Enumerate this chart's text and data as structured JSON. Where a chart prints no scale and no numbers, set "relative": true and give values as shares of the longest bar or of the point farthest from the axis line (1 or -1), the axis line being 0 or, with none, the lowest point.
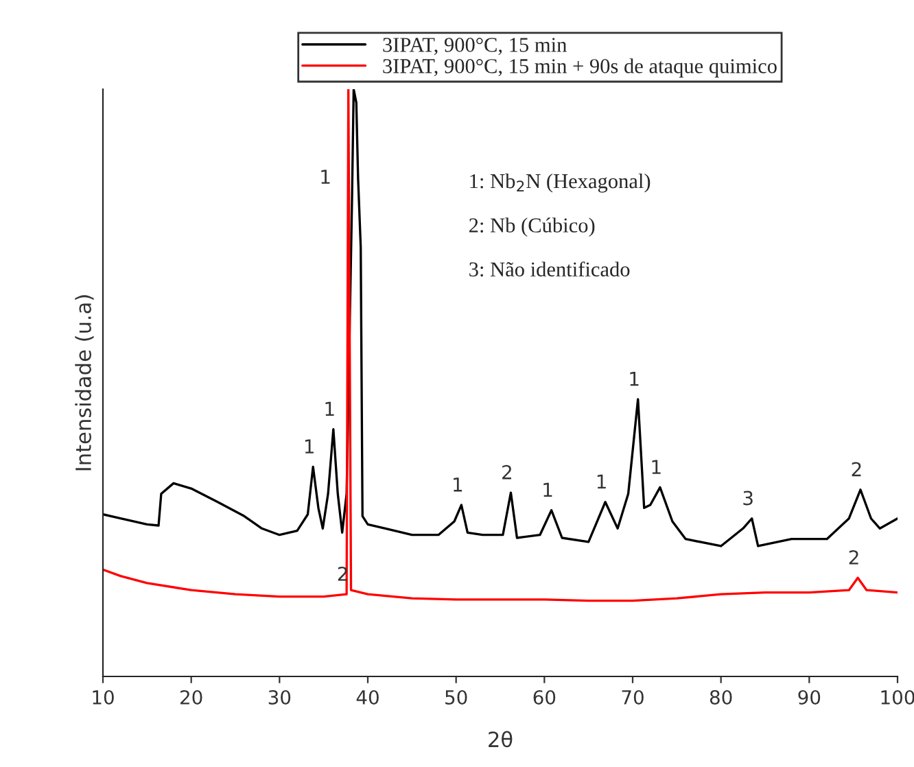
{
  "chart_data": {
    "type": "line",
    "xlabel": "2θ",
    "ylabel": "Intensidade (u.a)",
    "relative": true,
    "xlim": [
      10,
      100
    ],
    "xticks": [
      10,
      20,
      30,
      40,
      50,
      60,
      70,
      80,
      90,
      100
    ],
    "tick_labels": "x",
    "legend": "top",
    "grid": false,
    "series": [
      {
        "name": "3IPAT, 900°C, 15 min",
        "color": "#000000",
        "x": [
          10,
          12,
          15,
          16.3,
          16.6,
          18,
          20,
          23,
          26,
          28,
          30,
          32,
          33.2,
          33.8,
          34.4,
          34.9,
          35.5,
          36.1,
          36.6,
          37.1,
          37.6,
          38.2,
          38.4,
          38.7,
          38.9,
          39.2,
          39.4,
          40,
          42,
          45,
          48,
          49.8,
          50.6,
          51.3,
          53,
          55.3,
          56.2,
          56.9,
          59.5,
          60.8,
          62,
          65,
          66.9,
          68.3,
          69.5,
          70.6,
          71.3,
          72,
          73.1,
          74.5,
          76,
          80,
          82.5,
          83.5,
          84.2,
          88,
          92,
          94.5,
          95.8,
          97,
          98,
          100
        ],
        "values": [
          0.276,
          0.269,
          0.259,
          0.257,
          0.311,
          0.329,
          0.32,
          0.297,
          0.273,
          0.252,
          0.241,
          0.248,
          0.276,
          0.357,
          0.287,
          0.252,
          0.311,
          0.421,
          0.311,
          0.245,
          0.311,
          0.801,
          1.0,
          0.977,
          0.848,
          0.731,
          0.273,
          0.259,
          0.252,
          0.241,
          0.241,
          0.264,
          0.292,
          0.245,
          0.241,
          0.241,
          0.313,
          0.236,
          0.241,
          0.283,
          0.236,
          0.229,
          0.297,
          0.252,
          0.311,
          0.472,
          0.287,
          0.292,
          0.322,
          0.264,
          0.234,
          0.222,
          0.252,
          0.269,
          0.222,
          0.234,
          0.234,
          0.269,
          0.318,
          0.269,
          0.252,
          0.269
        ]
      },
      {
        "name": "3IPAT, 900°C, 15 min + 90s de ataque quimico",
        "color": "#ff0000",
        "x": [
          10,
          12,
          15,
          20,
          25,
          30,
          35,
          37.6,
          37.8,
          38.1,
          40,
          45,
          50,
          55,
          60,
          65,
          70,
          75,
          80,
          85,
          90,
          94.5,
          95.5,
          96.5,
          100
        ],
        "values": [
          0.182,
          0.171,
          0.159,
          0.147,
          0.14,
          0.136,
          0.136,
          0.14,
          1.0,
          0.147,
          0.14,
          0.133,
          0.131,
          0.131,
          0.131,
          0.129,
          0.129,
          0.133,
          0.14,
          0.143,
          0.143,
          0.147,
          0.168,
          0.147,
          0.143
        ]
      }
    ],
    "annotations": [
      {
        "text": "1",
        "x": 33.8,
        "y": 0.357
      },
      {
        "text": "1",
        "x": 36.1,
        "y": 0.421
      },
      {
        "text": "1",
        "x": 38.9,
        "y": 0.848
      },
      {
        "text": "2",
        "x": 37.6,
        "y": 0.14
      },
      {
        "text": "1",
        "x": 50.6,
        "y": 0.292
      },
      {
        "text": "2",
        "x": 56.2,
        "y": 0.313
      },
      {
        "text": "1",
        "x": 60.8,
        "y": 0.283
      },
      {
        "text": "1",
        "x": 66.9,
        "y": 0.297
      },
      {
        "text": "1",
        "x": 70.6,
        "y": 0.472
      },
      {
        "text": "1",
        "x": 73.1,
        "y": 0.322
      },
      {
        "text": "3",
        "x": 83.5,
        "y": 0.269
      },
      {
        "text": "2",
        "x": 95.8,
        "y": 0.318
      },
      {
        "text": "2",
        "x": 95.5,
        "y": 0.168
      },
      "1: Nb$_{2}$N (Hexagonal)",
      "2: Nb (Cúbico)",
      "3: Não identificado"
    ]
  }
}
